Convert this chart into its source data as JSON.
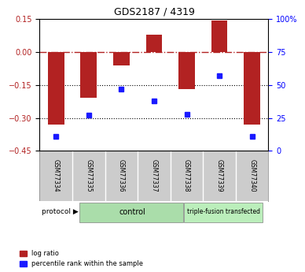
{
  "title": "GDS2187 / 4319",
  "samples": [
    "GSM77334",
    "GSM77335",
    "GSM77336",
    "GSM77337",
    "GSM77338",
    "GSM77339",
    "GSM77340"
  ],
  "log_ratio": [
    -0.33,
    -0.21,
    -0.06,
    0.08,
    -0.17,
    0.145,
    -0.33
  ],
  "percentile_rank": [
    11,
    27,
    47,
    38,
    28,
    57,
    11
  ],
  "ylim_left": [
    -0.45,
    0.15
  ],
  "ylim_right": [
    0,
    100
  ],
  "yticks_left": [
    0.15,
    0,
    -0.15,
    -0.3,
    -0.45
  ],
  "yticks_right": [
    100,
    75,
    50,
    25,
    0
  ],
  "bar_color": "#B22222",
  "dot_color": "#1a1aff",
  "control_label": "control",
  "treated_label": "triple-fusion transfected",
  "control_color": "#aaddaa",
  "treated_color": "#bbeebb",
  "protocol_label": "protocol",
  "legend_log_ratio": "log ratio",
  "legend_percentile": "percentile rank within the sample",
  "background_color": "#ffffff",
  "bar_width": 0.5,
  "label_bg": "#cccccc"
}
